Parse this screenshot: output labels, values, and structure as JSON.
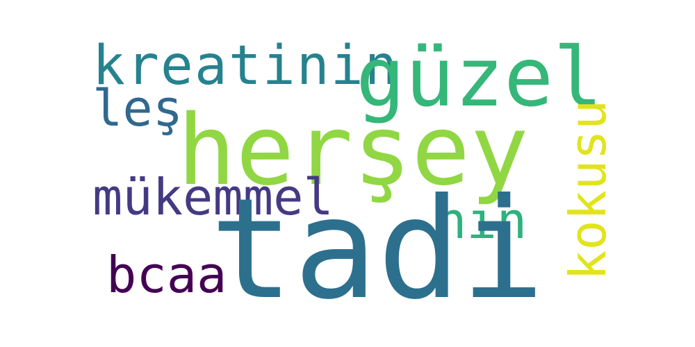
{
  "words": [
    {
      "id": "kreatinin",
      "text": "kreatinin",
      "color": "#26828e"
    },
    {
      "id": "guzel",
      "text": "güzel",
      "color": "#35b779"
    },
    {
      "id": "les",
      "text": "leş",
      "color": "#31688e"
    },
    {
      "id": "hersey",
      "text": "herşey",
      "color": "#90d743"
    },
    {
      "id": "kokusu",
      "text": "kokusu",
      "color": "#e1e41d"
    },
    {
      "id": "mukemmel",
      "text": "mükemmel",
      "color": "#443a83"
    },
    {
      "id": "nin",
      "text": "nın",
      "color": "#2db27d"
    },
    {
      "id": "bcaa",
      "text": "bcaa",
      "color": "#440154"
    },
    {
      "id": "tadi",
      "text": "tadi",
      "color": "#2d708e"
    }
  ],
  "background_color": "#ffffff"
}
